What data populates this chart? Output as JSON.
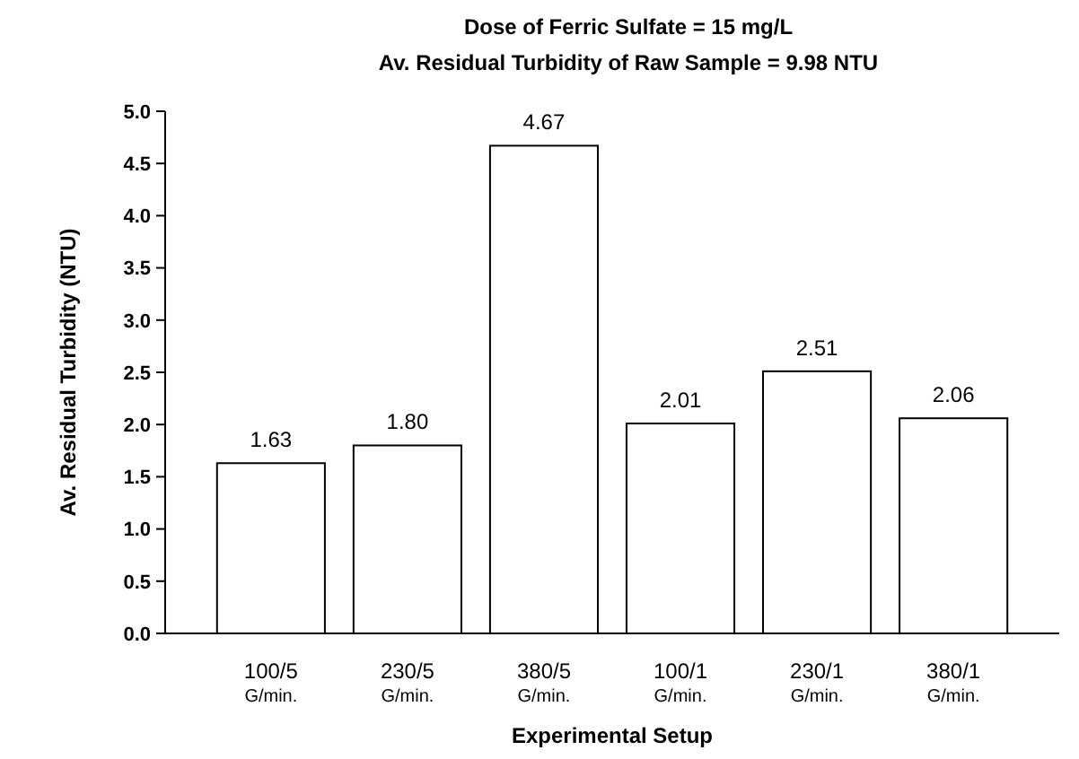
{
  "chart_data": {
    "type": "bar",
    "title": "Dose of Ferric Sulfate =  15 mg/L",
    "subtitle": "Av. Residual Turbidity of Raw Sample = 9.98 NTU",
    "xlabel": "Experimental Setup",
    "ylabel": "Av. Residual Turbidity (NTU)",
    "categories": [
      "100/5\nG/min.",
      "230/5\nG/min.",
      "380/5\nG/min.",
      "100/1\nG/min.",
      "230/1\nG/min.",
      "380/1\nG/min."
    ],
    "values": [
      1.63,
      1.8,
      4.67,
      2.01,
      2.51,
      2.06
    ],
    "value_labels": [
      "1.63",
      "1.80",
      "4.67",
      "2.01",
      "2.51",
      "2.06"
    ],
    "color": "#ffffff",
    "ylim": [
      0,
      5
    ],
    "yticks": [
      {
        "value": 0,
        "label": "0.0"
      },
      {
        "value": 0.5,
        "label": "0.5"
      },
      {
        "value": 1,
        "label": "1.0"
      },
      {
        "value": 1.5,
        "label": "1.5"
      },
      {
        "value": 2,
        "label": "2.0"
      },
      {
        "value": 2.5,
        "label": "2.5"
      },
      {
        "value": 3,
        "label": "3.0"
      },
      {
        "value": 3.5,
        "label": "3.5"
      },
      {
        "value": 4,
        "label": "4.0"
      },
      {
        "value": 4.5,
        "label": "4.5"
      },
      {
        "value": 5,
        "label": "5.0"
      }
    ],
    "grid": false
  }
}
